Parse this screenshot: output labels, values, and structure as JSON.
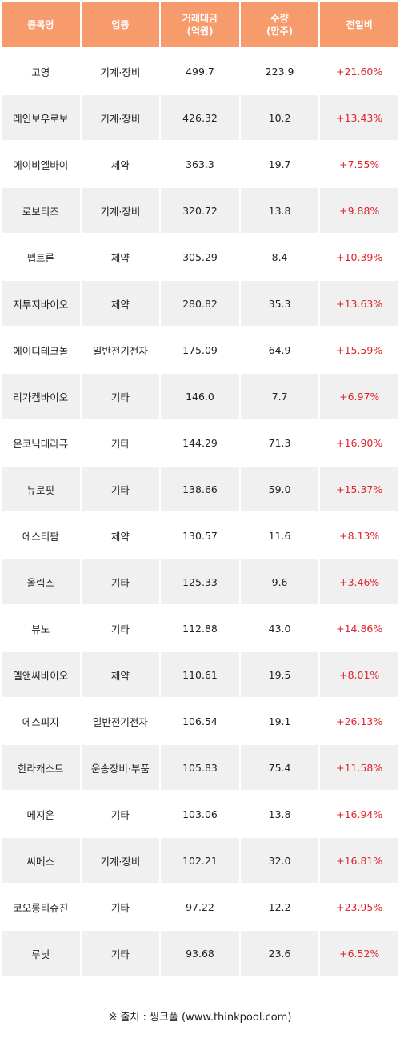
{
  "header": {
    "name": "종목명",
    "sector": "업종",
    "amount_line1": "거래대금",
    "amount_line2": "(억원)",
    "volume_line1": "수량",
    "volume_line2": "(만주)",
    "change": "전일비"
  },
  "rows": [
    {
      "name": "고영",
      "sector": "기계·장비",
      "amount": "499.7",
      "volume": "223.9",
      "change": "+21.60%"
    },
    {
      "name": "레인보우로보",
      "sector": "기계·장비",
      "amount": "426.32",
      "volume": "10.2",
      "change": "+13.43%"
    },
    {
      "name": "에이비엘바이",
      "sector": "제약",
      "amount": "363.3",
      "volume": "19.7",
      "change": "+7.55%"
    },
    {
      "name": "로보티즈",
      "sector": "기계·장비",
      "amount": "320.72",
      "volume": "13.8",
      "change": "+9.88%"
    },
    {
      "name": "펩트론",
      "sector": "제약",
      "amount": "305.29",
      "volume": "8.4",
      "change": "+10.39%"
    },
    {
      "name": "지투지바이오",
      "sector": "제약",
      "amount": "280.82",
      "volume": "35.3",
      "change": "+13.63%"
    },
    {
      "name": "에이디테크놀",
      "sector": "일반전기전자",
      "amount": "175.09",
      "volume": "64.9",
      "change": "+15.59%"
    },
    {
      "name": "리가켐바이오",
      "sector": "기타",
      "amount": "146.0",
      "volume": "7.7",
      "change": "+6.97%"
    },
    {
      "name": "온코닉테라퓨",
      "sector": "기타",
      "amount": "144.29",
      "volume": "71.3",
      "change": "+16.90%"
    },
    {
      "name": "뉴로핏",
      "sector": "기타",
      "amount": "138.66",
      "volume": "59.0",
      "change": "+15.37%"
    },
    {
      "name": "에스티팜",
      "sector": "제약",
      "amount": "130.57",
      "volume": "11.6",
      "change": "+8.13%"
    },
    {
      "name": "올릭스",
      "sector": "기타",
      "amount": "125.33",
      "volume": "9.6",
      "change": "+3.46%"
    },
    {
      "name": "뷰노",
      "sector": "기타",
      "amount": "112.88",
      "volume": "43.0",
      "change": "+14.86%"
    },
    {
      "name": "엘앤씨바이오",
      "sector": "제약",
      "amount": "110.61",
      "volume": "19.5",
      "change": "+8.01%"
    },
    {
      "name": "에스피지",
      "sector": "일반전기전자",
      "amount": "106.54",
      "volume": "19.1",
      "change": "+26.13%"
    },
    {
      "name": "한라캐스트",
      "sector": "운송장비·부품",
      "amount": "105.83",
      "volume": "75.4",
      "change": "+11.58%"
    },
    {
      "name": "메지온",
      "sector": "기타",
      "amount": "103.06",
      "volume": "13.8",
      "change": "+16.94%"
    },
    {
      "name": "씨메스",
      "sector": "기계·장비",
      "amount": "102.21",
      "volume": "32.0",
      "change": "+16.81%"
    },
    {
      "name": "코오롱티슈진",
      "sector": "기타",
      "amount": "97.22",
      "volume": "12.2",
      "change": "+23.95%"
    },
    {
      "name": "루닛",
      "sector": "기타",
      "amount": "93.68",
      "volume": "23.6",
      "change": "+6.52%"
    }
  ],
  "source": {
    "mark": "※",
    "text": "출처 : 씽크풀 (www.thinkpool.com)"
  },
  "colors": {
    "header_bg": "#f79a6c",
    "row_alt_bg": "#f0f0f0",
    "change_text": "#e0242b"
  }
}
